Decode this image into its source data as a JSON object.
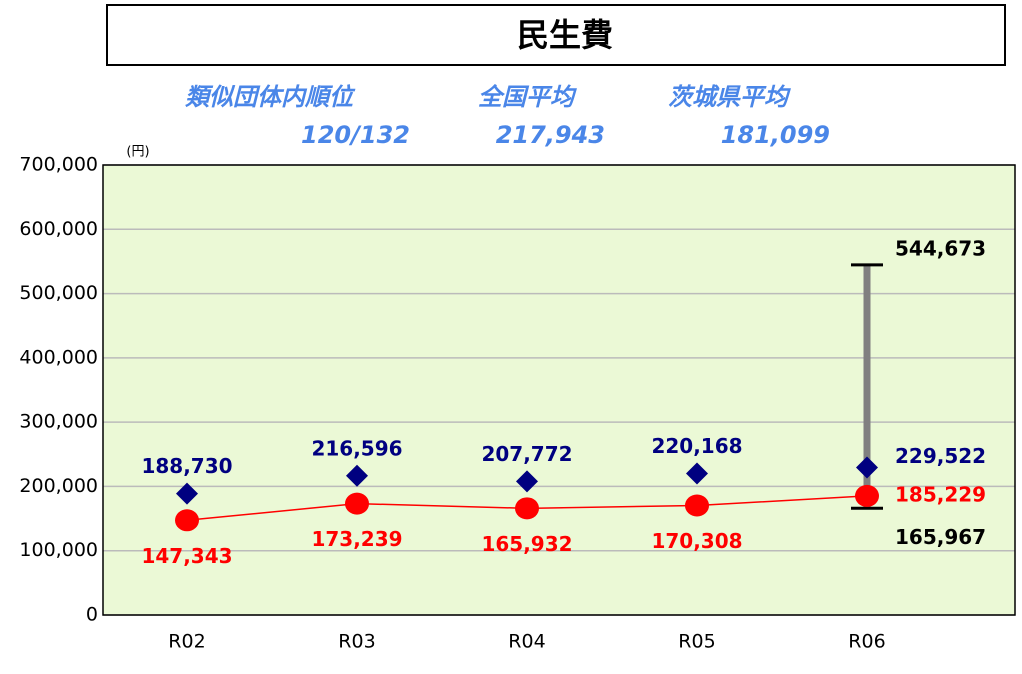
{
  "chart_data": {
    "type": "line",
    "title": "民生費",
    "stats": [
      {
        "label": "類似団体内順位",
        "value": "120/132"
      },
      {
        "label": "全国平均",
        "value": "217,943"
      },
      {
        "label": "茨城県平均",
        "value": "181,099"
      }
    ],
    "y_unit": "(円)",
    "categories": [
      "R02",
      "R03",
      "R04",
      "R05",
      "R06"
    ],
    "series": [
      {
        "color": "#000080",
        "marker": "diamond",
        "line": false,
        "values": [
          188730,
          216596,
          207772,
          220168,
          229522
        ],
        "value_labels": [
          "188,730",
          "216,596",
          "207,772",
          "220,168",
          "229,522"
        ]
      },
      {
        "color": "#ff0000",
        "marker": "circle",
        "line": true,
        "values": [
          147343,
          173239,
          165932,
          170308,
          185229
        ],
        "value_labels": [
          "147,343",
          "173,239",
          "165,932",
          "170,308",
          "185,229"
        ]
      }
    ],
    "range": {
      "max": 544673,
      "min": 165967,
      "max_label": "544,673",
      "min_label": "165,967"
    },
    "ylim": [
      0,
      700000
    ],
    "yticks": [
      0,
      {
        "value": 100000,
        "label": "100,000"
      },
      {
        "value": 200000,
        "label": "200,000"
      },
      {
        "value": 300000,
        "label": "300,000"
      },
      {
        "value": 400000,
        "label": "400,000"
      },
      {
        "value": 500000,
        "label": "500,000"
      },
      {
        "value": 600000,
        "label": "600,000"
      },
      {
        "value": 700000,
        "label": "700,000"
      }
    ],
    "grid": true,
    "plot_color": "#ebf9d6"
  }
}
